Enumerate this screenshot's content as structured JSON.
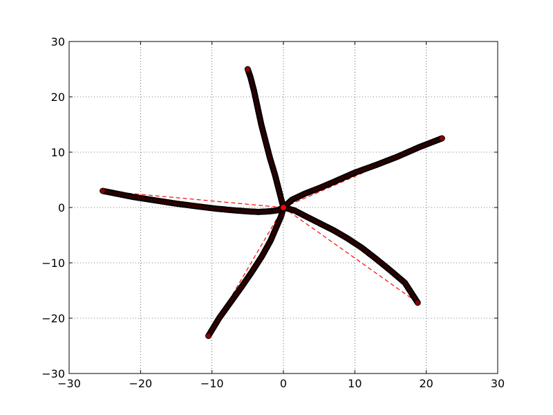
{
  "chart_data": {
    "type": "scatter",
    "title": "",
    "xlabel": "",
    "ylabel": "",
    "xlim": [
      -30,
      30
    ],
    "ylim": [
      -30,
      30
    ],
    "x_ticks": [
      -30,
      -20,
      -10,
      0,
      10,
      20,
      30
    ],
    "y_ticks": [
      -30,
      -20,
      -10,
      0,
      10,
      20,
      30
    ],
    "x_tick_labels": [
      "−30",
      "−20",
      "−10",
      "0",
      "10",
      "20",
      "30"
    ],
    "y_tick_labels": [
      "−30",
      "−20",
      "−10",
      "0",
      "10",
      "20",
      "30"
    ],
    "grid": true,
    "grid_style": "dotted",
    "marker_fill": "#8b0000",
    "marker_edge": "#000000",
    "dashed_line_color": "#ff0000",
    "center_point": {
      "x": 0,
      "y": 0,
      "color": "#ff0000"
    },
    "arms": [
      {
        "points": [
          [
            0,
            0
          ],
          [
            -0.6,
            3
          ],
          [
            -1.2,
            6
          ],
          [
            -1.9,
            9
          ],
          [
            -2.5,
            12
          ],
          [
            -3.1,
            15
          ],
          [
            -3.6,
            18
          ],
          [
            -4.1,
            21
          ],
          [
            -4.6,
            23.5
          ],
          [
            -5,
            25
          ]
        ],
        "endpoint": [
          -5,
          25
        ]
      },
      {
        "points": [
          [
            0,
            0
          ],
          [
            1.2,
            1.4
          ],
          [
            3,
            2.5
          ],
          [
            5,
            3.5
          ],
          [
            7,
            4.6
          ],
          [
            10,
            6.3
          ],
          [
            13,
            7.7
          ],
          [
            16,
            9.2
          ],
          [
            19,
            10.9
          ],
          [
            22.2,
            12.5
          ]
        ],
        "endpoint": [
          22.2,
          12.5
        ]
      },
      {
        "points": [
          [
            0,
            0
          ],
          [
            1.5,
            -0.5
          ],
          [
            3,
            -1.5
          ],
          [
            5,
            -2.8
          ],
          [
            7,
            -4.1
          ],
          [
            9,
            -5.6
          ],
          [
            11,
            -7.3
          ],
          [
            13,
            -9.3
          ],
          [
            15,
            -11.4
          ],
          [
            17,
            -13.6
          ],
          [
            18.8,
            -17.2
          ]
        ],
        "endpoint": [
          18.8,
          -17.2
        ]
      },
      {
        "points": [
          [
            0,
            0
          ],
          [
            -0.3,
            -1.5
          ],
          [
            -0.8,
            -3
          ],
          [
            -1.8,
            -6
          ],
          [
            -3,
            -8.8
          ],
          [
            -4.5,
            -11.8
          ],
          [
            -6,
            -14.6
          ],
          [
            -7.5,
            -17.3
          ],
          [
            -9,
            -20
          ],
          [
            -10.5,
            -23.2
          ]
        ],
        "endpoint": [
          -10.5,
          -23.2
        ]
      },
      {
        "points": [
          [
            0,
            0
          ],
          [
            -0.8,
            -0.5
          ],
          [
            -2,
            -0.7
          ],
          [
            -3.5,
            -0.8
          ],
          [
            -5,
            -0.7
          ],
          [
            -7,
            -0.5
          ],
          [
            -9.5,
            -0.2
          ],
          [
            -12,
            0.2
          ],
          [
            -15,
            0.7
          ],
          [
            -18,
            1.3
          ],
          [
            -21,
            1.9
          ],
          [
            -25.3,
            3
          ]
        ],
        "endpoint": [
          -25.3,
          3
        ]
      }
    ]
  }
}
